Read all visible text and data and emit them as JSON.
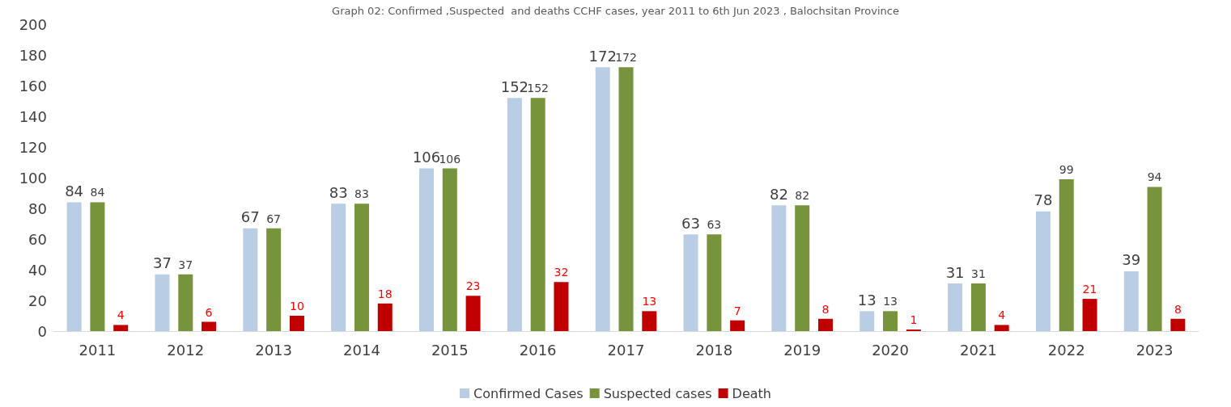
{
  "chart_data": {
    "type": "bar",
    "title": "Graph 02: Confirmed ,Suspected  and deaths CCHF cases, year 2011 to 6th Jun 2023 , Balochsitan Province",
    "categories": [
      "2011",
      "2012",
      "2013",
      "2014",
      "2015",
      "2016",
      "2017",
      "2018",
      "2019",
      "2020",
      "2021",
      "2022",
      "2023"
    ],
    "series": [
      {
        "name": "Confirmed Cases",
        "color": "#b9cde5",
        "values": [
          84,
          37,
          67,
          83,
          106,
          152,
          172,
          63,
          82,
          13,
          31,
          78,
          39
        ]
      },
      {
        "name": "Suspected cases",
        "color": "#77933c",
        "values": [
          84,
          37,
          67,
          83,
          106,
          152,
          172,
          63,
          82,
          13,
          31,
          99,
          94
        ]
      },
      {
        "name": "Death",
        "color": "#c00000",
        "values": [
          4,
          6,
          10,
          18,
          23,
          32,
          13,
          7,
          8,
          1,
          4,
          21,
          8
        ]
      }
    ],
    "ylim": [
      0,
      200
    ],
    "yticks": [
      0,
      20,
      40,
      60,
      80,
      100,
      120,
      140,
      160,
      180,
      200
    ],
    "grid": false,
    "legend": "bottom",
    "data_labels": true
  }
}
